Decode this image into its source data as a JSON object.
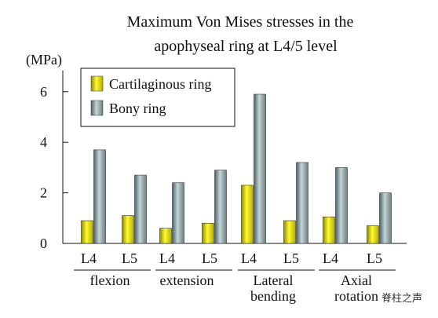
{
  "chart_data": {
    "type": "bar",
    "title_lines": [
      "Maximum Von Mises stresses in the",
      "apophyseal ring at L4/5 level"
    ],
    "ylabel": "(MPa)",
    "ylim": [
      0,
      7
    ],
    "yticks": [
      0,
      2,
      4,
      6
    ],
    "categories": [
      "L4",
      "L5",
      "L4",
      "L5",
      "L4",
      "L5",
      "L4",
      "L5"
    ],
    "groups": [
      {
        "lines": [
          "flexion"
        ]
      },
      {
        "lines": [
          "extension"
        ]
      },
      {
        "lines": [
          "Lateral",
          "bending"
        ]
      },
      {
        "lines": [
          "Axial",
          "rotation"
        ]
      }
    ],
    "series": [
      {
        "name": "Cartilaginous ring",
        "color": "#e6e010",
        "values": [
          0.9,
          1.1,
          0.6,
          0.8,
          2.3,
          0.9,
          1.05,
          0.7
        ]
      },
      {
        "name": "Bony ring",
        "color": "#8fa6aa",
        "values": [
          3.7,
          2.7,
          2.4,
          2.9,
          5.9,
          3.2,
          3.0,
          2.0
        ]
      }
    ],
    "legend_position": "top-left",
    "grid": false
  },
  "watermark": "脊柱之声"
}
